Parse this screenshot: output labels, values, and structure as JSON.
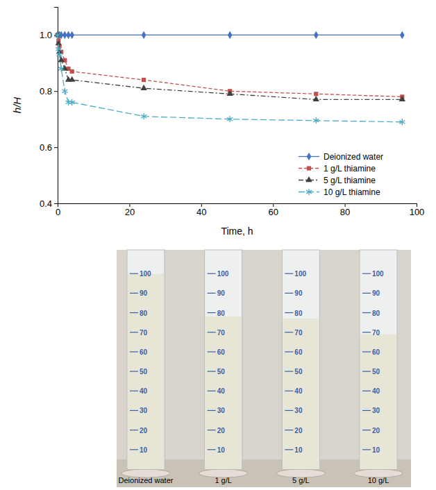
{
  "chart_data": {
    "type": "line",
    "x_label": "Time, h",
    "y_label": "h/H",
    "x": [
      0,
      0.25,
      0.5,
      1,
      2,
      3,
      4,
      24,
      48,
      72,
      96
    ],
    "xlim": [
      0,
      100
    ],
    "xticks": [
      0,
      20,
      40,
      60,
      80,
      100
    ],
    "ylim": [
      0.4,
      1.1
    ],
    "yticks": [
      0.4,
      0.6,
      0.8,
      {
        "value": 1,
        "label": "1.0"
      }
    ],
    "legend": "lower right",
    "series": [
      {
        "name": "Deionized water",
        "color": "#4472c4",
        "marker": "diamond",
        "line_style": "solid",
        "values": [
          1.0,
          1.0,
          1.0,
          1.0,
          1.0,
          1.0,
          1.0,
          1.0,
          1.0,
          1.0,
          1.0
        ]
      },
      {
        "name": "1 g/L thiamine",
        "color": "#c0504d",
        "marker": "square",
        "line_style": "dashed",
        "values": [
          1.0,
          0.98,
          0.96,
          0.94,
          0.91,
          0.88,
          0.87,
          0.84,
          0.8,
          0.79,
          0.78
        ]
      },
      {
        "name": "5 g/L thiamine",
        "color": "#404040",
        "marker": "triangle",
        "line_style": "dashdot",
        "values": [
          1.0,
          0.97,
          0.94,
          0.91,
          0.88,
          0.84,
          0.84,
          0.81,
          0.79,
          0.77,
          0.77
        ]
      },
      {
        "name": "10 g/L thiamine",
        "color": "#4bacc6",
        "marker": "asterisk",
        "line_style": "longdash",
        "values": [
          1.0,
          0.95,
          0.93,
          0.88,
          0.8,
          0.76,
          0.76,
          0.71,
          0.7,
          0.695,
          0.69
        ]
      }
    ]
  },
  "photo": {
    "labels": [
      "Deionized water",
      "1 g/L",
      "5 g/L",
      "10 g/L"
    ],
    "scale": [
      10,
      20,
      30,
      40,
      50,
      60,
      70,
      80,
      90,
      100
    ],
    "ylim": [
      0,
      110
    ],
    "turbid_level": [
      100,
      78,
      77,
      69
    ]
  }
}
